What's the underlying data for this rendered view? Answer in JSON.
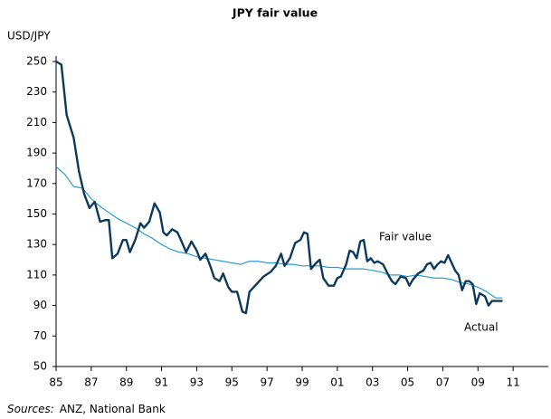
{
  "chart_data": {
    "type": "line",
    "title": "JPY fair value",
    "y_label": "USD/JPY",
    "source": {
      "label": "Sources:",
      "text": "ANZ, National Bank"
    },
    "ylim": [
      50,
      250
    ],
    "yticks": [
      50,
      70,
      90,
      110,
      130,
      150,
      170,
      190,
      210,
      230,
      250
    ],
    "xlim": [
      1985,
      2013
    ],
    "xticks": [
      {
        "value": 1985,
        "label": "85"
      },
      {
        "value": 1987,
        "label": "87"
      },
      {
        "value": 1989,
        "label": "89"
      },
      {
        "value": 1991,
        "label": "91"
      },
      {
        "value": 1993,
        "label": "93"
      },
      {
        "value": 1995,
        "label": "95"
      },
      {
        "value": 1997,
        "label": "97"
      },
      {
        "value": 1999,
        "label": "99"
      },
      {
        "value": 2001,
        "label": "01"
      },
      {
        "value": 2003,
        "label": "03"
      },
      {
        "value": 2005,
        "label": "05"
      },
      {
        "value": 2007,
        "label": "07"
      },
      {
        "value": 2009,
        "label": "09"
      },
      {
        "value": 2011,
        "label": "11"
      }
    ],
    "series": [
      {
        "name": "Fair value",
        "color": "#2a9ad0",
        "width": 1.2,
        "x": [
          1985,
          1985.5,
          1986,
          1986.5,
          1987,
          1987.5,
          1988,
          1988.5,
          1989,
          1989.5,
          1990,
          1990.5,
          1991,
          1991.5,
          1992,
          1992.5,
          1993,
          1993.5,
          1994,
          1994.5,
          1995,
          1995.5,
          1996,
          1996.5,
          1997,
          1997.5,
          1998,
          1998.5,
          1999,
          1999.5,
          2000,
          2000.5,
          2001,
          2001.5,
          2002,
          2002.5,
          2003,
          2003.5,
          2004,
          2004.5,
          2005,
          2005.5,
          2006,
          2006.5,
          2007,
          2007.5,
          2008,
          2008.5,
          2009,
          2009.5,
          2010,
          2010.4
        ],
        "values": [
          181,
          176,
          168,
          167,
          160,
          155,
          151,
          147,
          144,
          141,
          137,
          134,
          130,
          127,
          125,
          124,
          122,
          121,
          120,
          119,
          118,
          117,
          119,
          119,
          118,
          118,
          117,
          117,
          116,
          116,
          116,
          115,
          115,
          114,
          114,
          114,
          113,
          112,
          110,
          110,
          109,
          110,
          109,
          108,
          108,
          107,
          105,
          104,
          102,
          99,
          95,
          95
        ]
      },
      {
        "name": "Actual",
        "color": "#0d3a5c",
        "width": 2.4,
        "x": [
          1985,
          1985.3,
          1985.6,
          1986,
          1986.3,
          1986.6,
          1986.9,
          1987.2,
          1987.5,
          1987.8,
          1988,
          1988.2,
          1988.5,
          1988.8,
          1989,
          1989.2,
          1989.5,
          1989.8,
          1990,
          1990.3,
          1990.6,
          1990.9,
          1991.1,
          1991.3,
          1991.6,
          1991.9,
          1992.1,
          1992.4,
          1992.7,
          1993,
          1993.2,
          1993.5,
          1993.8,
          1994,
          1994.3,
          1994.5,
          1994.8,
          1995,
          1995.3,
          1995.6,
          1995.8,
          1996,
          1996.4,
          1996.8,
          1997.2,
          1997.5,
          1997.8,
          1998,
          1998.3,
          1998.6,
          1998.9,
          1999.1,
          1999.3,
          1999.5,
          1999.8,
          2000,
          2000.2,
          2000.5,
          2000.8,
          2001,
          2001.2,
          2001.5,
          2001.7,
          2001.9,
          2002.1,
          2002.3,
          2002.5,
          2002.7,
          2002.9,
          2003.1,
          2003.3,
          2003.6,
          2003.9,
          2004.1,
          2004.3,
          2004.6,
          2004.9,
          2005.1,
          2005.3,
          2005.6,
          2005.9,
          2006.1,
          2006.3,
          2006.5,
          2006.7,
          2006.9,
          2007.1,
          2007.3,
          2007.5,
          2007.7,
          2007.9,
          2008.1,
          2008.3,
          2008.5,
          2008.7,
          2008.9,
          2009.1,
          2009.4,
          2009.6,
          2009.8,
          2010,
          2010.4
        ],
        "values": [
          250,
          248,
          215,
          200,
          178,
          163,
          154,
          158,
          145,
          146,
          146,
          121,
          124,
          133,
          133,
          125,
          133,
          144,
          141,
          145,
          157,
          151,
          138,
          136,
          140,
          138,
          133,
          125,
          132,
          126,
          120,
          124,
          115,
          108,
          106,
          111,
          102,
          99,
          99,
          86,
          85,
          99,
          104,
          109,
          112,
          116,
          124,
          116,
          121,
          131,
          133,
          138,
          137,
          114,
          118,
          120,
          108,
          103,
          103,
          108,
          109,
          117,
          126,
          125,
          121,
          132,
          133,
          119,
          121,
          118,
          119,
          117,
          110,
          106,
          104,
          109,
          108,
          103,
          107,
          111,
          113,
          117,
          118,
          114,
          117,
          119,
          118,
          123,
          118,
          113,
          110,
          100,
          106,
          106,
          104,
          91,
          98,
          96,
          90,
          93,
          93,
          93
        ]
      }
    ]
  }
}
